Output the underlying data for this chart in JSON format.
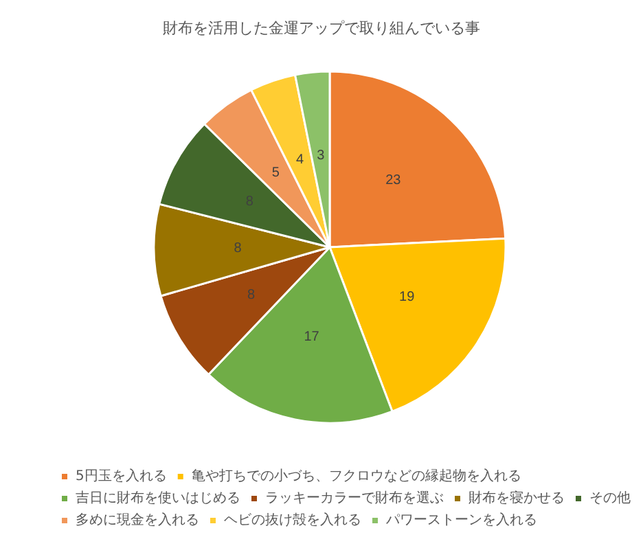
{
  "chart_data": {
    "type": "pie",
    "title": "財布を活用した金運アップで取り組んでいる事",
    "categories": [
      "5円玉を入れる",
      "亀や打ちでの小づち、フクロウなどの縁起物を入れる",
      "吉日に財布を使いはじめる",
      "ラッキーカラーで財布を選ぶ",
      "財布を寝かせる",
      "その他",
      "多めに現金を入れる",
      "ヘビの抜け殻を入れる",
      "パワーストーンを入れる"
    ],
    "values": [
      23,
      19,
      17,
      8,
      8,
      8,
      5,
      4,
      3
    ],
    "colors": [
      "#ed7d31",
      "#ffc000",
      "#70ad47",
      "#9e480e",
      "#997300",
      "#43682b",
      "#f1975a",
      "#ffcd33",
      "#8cc168"
    ],
    "data_labels": true,
    "legend": "bottom"
  }
}
